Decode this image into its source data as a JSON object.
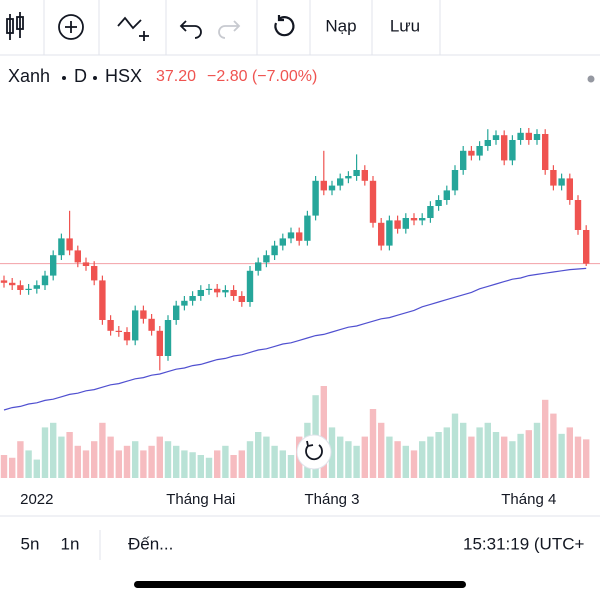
{
  "toolbar": {
    "load": "Nạp",
    "save": "Lưu"
  },
  "header": {
    "symbol": "Xanh",
    "interval": "D",
    "exchange": "HSX",
    "price": "37.20",
    "change": "−2.80 (−7.00%)"
  },
  "bottom_bar": {
    "range_5d": "5n",
    "range_1d": "1n",
    "goto": "Đến...",
    "clock": "15:31:19 (UTC+"
  },
  "chart_data": {
    "type": "candlestick",
    "categories": [
      null,
      null,
      null,
      null,
      "2022",
      null,
      null,
      null,
      null,
      null,
      null,
      null,
      null,
      null,
      null,
      null,
      null,
      null,
      null,
      null,
      null,
      null,
      null,
      null,
      "Tháng Hai",
      null,
      null,
      null,
      null,
      null,
      null,
      null,
      null,
      null,
      null,
      null,
      null,
      null,
      null,
      null,
      "Tháng 3",
      null,
      null,
      null,
      null,
      null,
      null,
      null,
      null,
      null,
      null,
      null,
      null,
      null,
      null,
      null,
      null,
      null,
      null,
      null,
      null,
      null,
      null,
      null,
      "Tháng 4",
      null,
      null,
      null,
      null,
      null,
      null,
      null
    ],
    "open": [
      35.8,
      35.6,
      35.4,
      35.0,
      35.1,
      35.4,
      36.2,
      37.9,
      39.3,
      38.3,
      37.3,
      37.0,
      35.8,
      32.5,
      31.6,
      31.5,
      30.8,
      33.3,
      32.6,
      31.6,
      29.5,
      32.5,
      33.7,
      34.1,
      34.5,
      35.0,
      35.1,
      34.8,
      35.0,
      34.5,
      34.0,
      36.6,
      37.3,
      37.9,
      38.7,
      39.3,
      39.8,
      39.1,
      41.2,
      44.1,
      43.3,
      43.7,
      44.3,
      44.5,
      45.0,
      44.1,
      40.6,
      38.7,
      40.8,
      40.1,
      41.0,
      40.8,
      41.0,
      42.0,
      42.5,
      43.3,
      45.0,
      46.6,
      46.2,
      47.0,
      47.5,
      47.9,
      45.8,
      47.5,
      48.1,
      47.5,
      48.0,
      45.0,
      43.7,
      44.3,
      42.5,
      40.0
    ],
    "high": [
      36.2,
      36.0,
      35.8,
      35.5,
      35.8,
      36.6,
      38.3,
      39.7,
      41.6,
      38.7,
      37.7,
      37.4,
      36.2,
      32.9,
      32.0,
      31.9,
      33.7,
      33.7,
      33.0,
      32.0,
      32.9,
      34.1,
      34.5,
      34.9,
      35.4,
      35.5,
      35.5,
      35.4,
      35.4,
      34.9,
      37.0,
      37.7,
      38.3,
      39.1,
      39.7,
      40.2,
      40.2,
      41.6,
      44.5,
      46.6,
      44.1,
      44.7,
      44.9,
      46.3,
      45.4,
      44.5,
      41.0,
      41.2,
      41.2,
      41.4,
      41.4,
      41.4,
      42.4,
      42.9,
      43.7,
      45.4,
      47.0,
      47.0,
      47.4,
      48.4,
      48.3,
      48.3,
      47.9,
      48.5,
      48.5,
      48.4,
      48.4,
      45.4,
      44.7,
      44.7,
      42.9,
      40.4
    ],
    "low": [
      35.2,
      35.0,
      34.6,
      34.6,
      34.7,
      35.0,
      35.8,
      37.5,
      37.9,
      36.9,
      36.6,
      35.4,
      32.1,
      31.2,
      31.1,
      30.4,
      30.4,
      32.2,
      31.2,
      28.3,
      29.1,
      32.1,
      33.3,
      33.7,
      34.1,
      34.6,
      34.4,
      34.4,
      34.1,
      33.6,
      33.6,
      36.2,
      36.9,
      37.5,
      38.3,
      38.9,
      38.7,
      38.7,
      40.8,
      42.9,
      42.9,
      43.3,
      43.9,
      44.1,
      43.7,
      40.2,
      38.3,
      38.3,
      39.7,
      39.7,
      40.4,
      40.4,
      40.6,
      41.6,
      42.1,
      42.9,
      44.6,
      45.8,
      45.8,
      46.6,
      47.1,
      45.4,
      45.4,
      47.1,
      47.1,
      47.1,
      44.6,
      43.3,
      43.3,
      42.1,
      39.6,
      37.0
    ],
    "close": [
      35.6,
      35.4,
      35.0,
      35.1,
      35.4,
      36.2,
      37.9,
      39.3,
      38.3,
      37.3,
      37.0,
      35.8,
      32.5,
      31.6,
      31.5,
      30.8,
      33.3,
      32.6,
      31.6,
      29.5,
      32.5,
      33.7,
      34.1,
      34.5,
      35.0,
      35.1,
      34.8,
      35.0,
      34.5,
      34.0,
      36.6,
      37.3,
      37.9,
      38.7,
      39.3,
      39.8,
      39.1,
      41.2,
      44.1,
      43.3,
      43.7,
      44.3,
      44.5,
      45.0,
      44.1,
      40.6,
      38.7,
      40.8,
      40.1,
      41.0,
      40.8,
      41.0,
      42.0,
      42.5,
      43.3,
      45.0,
      46.6,
      46.2,
      47.0,
      47.5,
      47.9,
      45.8,
      47.5,
      48.1,
      47.5,
      48.0,
      45.0,
      43.7,
      44.3,
      42.5,
      40.0,
      37.2
    ],
    "volume": [
      25,
      22,
      40,
      30,
      20,
      55,
      60,
      45,
      50,
      35,
      30,
      40,
      60,
      45,
      30,
      35,
      40,
      30,
      35,
      45,
      40,
      35,
      30,
      28,
      25,
      22,
      30,
      35,
      25,
      30,
      40,
      50,
      45,
      35,
      30,
      25,
      45,
      60,
      90,
      100,
      55,
      45,
      40,
      35,
      45,
      75,
      60,
      45,
      40,
      35,
      30,
      40,
      45,
      50,
      55,
      70,
      60,
      45,
      55,
      60,
      50,
      45,
      40,
      48,
      52,
      60,
      85,
      70,
      48,
      55,
      45,
      42
    ],
    "ma": [
      25.0,
      25.2,
      25.3,
      25.5,
      25.6,
      25.8,
      25.9,
      26.1,
      26.3,
      26.4,
      26.6,
      26.7,
      26.9,
      27.1,
      27.2,
      27.4,
      27.6,
      27.7,
      27.9,
      28.0,
      28.2,
      28.4,
      28.5,
      28.7,
      28.8,
      29.0,
      29.2,
      29.3,
      29.5,
      29.6,
      29.8,
      30.0,
      30.1,
      30.3,
      30.5,
      30.6,
      30.8,
      31.0,
      31.2,
      31.3,
      31.5,
      31.7,
      31.9,
      32.0,
      32.2,
      32.4,
      32.6,
      32.7,
      32.9,
      33.1,
      33.3,
      33.6,
      33.8,
      34.0,
      34.2,
      34.4,
      34.6,
      34.8,
      35.1,
      35.3,
      35.5,
      35.7,
      35.9,
      36.0,
      36.2,
      36.3,
      36.4,
      36.5,
      36.6,
      36.7,
      36.75,
      36.8
    ],
    "ylim": [
      20,
      54
    ],
    "vlim": [
      0,
      100
    ],
    "up_color": "#26a69a",
    "down_color": "#ef5350",
    "volume_up_color": "#b9e2d6",
    "volume_down_color": "#f6bcc0",
    "ma_color": "#5050d0",
    "price_line_color": "#f2a0a6"
  }
}
